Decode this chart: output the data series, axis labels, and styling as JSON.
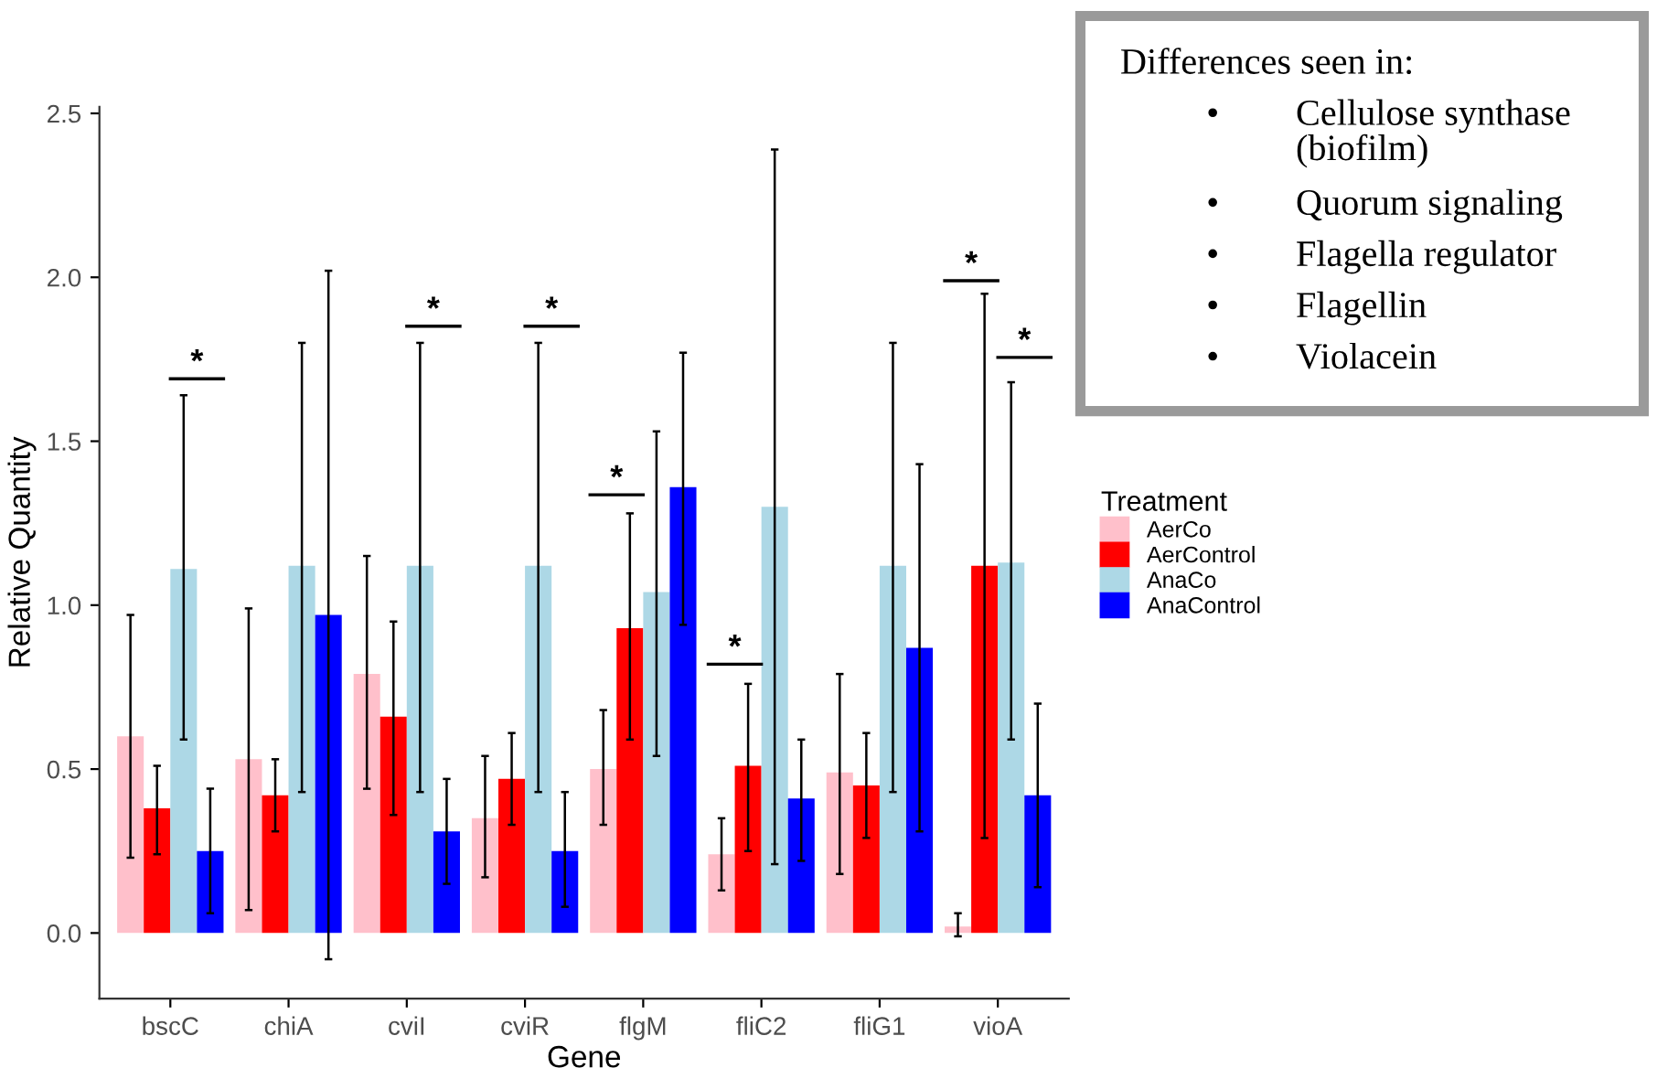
{
  "chart_data": {
    "type": "bar",
    "xlabel": "Gene",
    "ylabel": "Relative Quantity",
    "legend_title": "Treatment",
    "legend": "right",
    "grid": false,
    "categories": [
      "bscC",
      "chiA",
      "cviI",
      "cviR",
      "flgM",
      "fliC2",
      "fliG1",
      "vioA"
    ],
    "ylim": [
      -0.2,
      2.52
    ],
    "yticks": [
      {
        "value": 0,
        "label": "0.0"
      },
      {
        "value": 0.5,
        "label": "0.5"
      },
      {
        "value": 1,
        "label": "1.0"
      },
      {
        "value": 1.5,
        "label": "1.5"
      },
      {
        "value": 2,
        "label": "2.0"
      },
      {
        "value": 2.5,
        "label": "2.5"
      }
    ],
    "series": [
      {
        "name": "AerCo",
        "color": "#ffc0cb",
        "values": [
          0.6,
          0.53,
          0.79,
          0.35,
          0.5,
          0.24,
          0.49,
          0.02
        ],
        "errors": [
          [
            0.23,
            0.97
          ],
          [
            0.07,
            0.99
          ],
          [
            0.44,
            1.15
          ],
          [
            0.17,
            0.54
          ],
          [
            0.33,
            0.68
          ],
          [
            0.13,
            0.35
          ],
          [
            0.18,
            0.79
          ],
          [
            -0.01,
            0.06
          ]
        ]
      },
      {
        "name": "AerControl",
        "color": "#ff0000",
        "values": [
          0.38,
          0.42,
          0.66,
          0.47,
          0.93,
          0.51,
          0.45,
          1.12
        ],
        "errors": [
          [
            0.24,
            0.51
          ],
          [
            0.31,
            0.53
          ],
          [
            0.36,
            0.95
          ],
          [
            0.33,
            0.61
          ],
          [
            0.59,
            1.28
          ],
          [
            0.25,
            0.76
          ],
          [
            0.29,
            0.61
          ],
          [
            0.29,
            1.95
          ]
        ]
      },
      {
        "name": "AnaCo",
        "color": "#add8e6",
        "values": [
          1.11,
          1.12,
          1.12,
          1.12,
          1.04,
          1.3,
          1.12,
          1.13
        ],
        "errors": [
          [
            0.59,
            1.64
          ],
          [
            0.43,
            1.8
          ],
          [
            0.43,
            1.8
          ],
          [
            0.43,
            1.8
          ],
          [
            0.54,
            1.53
          ],
          [
            0.21,
            2.39
          ],
          [
            0.43,
            1.8
          ],
          [
            0.59,
            1.68
          ]
        ]
      },
      {
        "name": "AnaControl",
        "color": "#0000ff",
        "values": [
          0.25,
          0.97,
          0.31,
          0.25,
          1.36,
          0.41,
          0.87,
          0.42
        ],
        "errors": [
          [
            0.06,
            0.44
          ],
          [
            -0.08,
            2.02
          ],
          [
            0.15,
            0.47
          ],
          [
            0.08,
            0.43
          ],
          [
            0.94,
            1.77
          ],
          [
            0.22,
            0.59
          ],
          [
            0.31,
            1.43
          ],
          [
            0.14,
            0.7
          ]
        ]
      }
    ],
    "annotations": [
      "*",
      "*",
      "*",
      "*",
      "*",
      "*",
      "*",
      "Differences seen in:",
      "• Cellulose synthase\n(biofilm)",
      "• Quorum signaling",
      "• Flagella regulator",
      "• Flagellin",
      "• Violacein"
    ]
  }
}
